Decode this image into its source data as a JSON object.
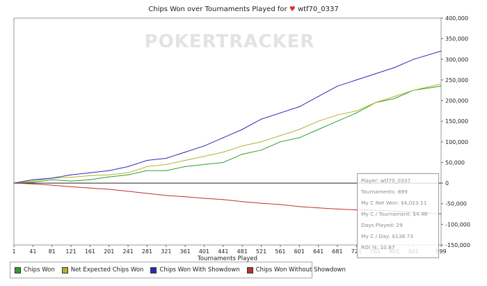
{
  "title": {
    "prefix": "Chips Won over Tournaments Played for",
    "player": "wtf70_0337",
    "suit_icon": "heart-icon"
  },
  "watermark": "POKERTRACKER",
  "legend": [
    {
      "name": "Chips Won",
      "color": "#2aa02a"
    },
    {
      "name": "Net Expected Chips Won",
      "color": "#b5b030"
    },
    {
      "name": "Chips Won With Showdown",
      "color": "#2a2ab8"
    },
    {
      "name": "Chips Won Without Showdown",
      "color": "#c03030"
    }
  ],
  "stats": [
    "Player: wtf70_0337",
    "Tournaments: 899",
    "My C Net Won: $4,023.11",
    "My C / Tournament: $4.48",
    "Days Played: 29",
    "My C / Day: $138.73",
    "ROI %: 10.87"
  ],
  "chart_data": {
    "type": "line",
    "title": "Chips Won over Tournaments Played for wtf70_0337",
    "xlabel": "Tournaments Played",
    "ylabel": "",
    "xlim": [
      1,
      899
    ],
    "ylim": [
      -150000,
      400000
    ],
    "x_ticks": [
      "1",
      "41",
      "81",
      "121",
      "161",
      "201",
      "241",
      "281",
      "321",
      "361",
      "401",
      "441",
      "481",
      "521",
      "561",
      "601",
      "641",
      "681",
      "721",
      "761",
      "801",
      "841",
      "899"
    ],
    "y_ticks": [
      "400,000",
      "350,000",
      "300,000",
      "250,000",
      "200,000",
      "150,000",
      "100,000",
      "50,000",
      "0",
      "-50,000",
      "-100,000",
      "-150,000"
    ],
    "grid": false,
    "legend_position": "bottom",
    "x": [
      1,
      41,
      81,
      121,
      161,
      201,
      241,
      281,
      321,
      361,
      401,
      441,
      481,
      521,
      561,
      601,
      641,
      681,
      721,
      761,
      801,
      841,
      899
    ],
    "series": [
      {
        "name": "Chips Won",
        "values": [
          0,
          2000,
          8000,
          5000,
          8000,
          15000,
          20000,
          30000,
          30000,
          40000,
          45000,
          50000,
          70000,
          80000,
          100000,
          110000,
          130000,
          150000,
          170000,
          195000,
          205000,
          225000,
          235000
        ]
      },
      {
        "name": "Net Expected Chips Won",
        "values": [
          0,
          5000,
          12000,
          14000,
          18000,
          20000,
          25000,
          40000,
          45000,
          55000,
          65000,
          75000,
          90000,
          100000,
          115000,
          130000,
          150000,
          165000,
          175000,
          195000,
          210000,
          225000,
          240000
        ]
      },
      {
        "name": "Chips Won With Showdown",
        "values": [
          0,
          8000,
          12000,
          20000,
          25000,
          30000,
          40000,
          55000,
          60000,
          75000,
          90000,
          110000,
          130000,
          155000,
          170000,
          185000,
          210000,
          235000,
          250000,
          265000,
          280000,
          300000,
          320000
        ]
      },
      {
        "name": "Chips Won Without Showdown",
        "values": [
          0,
          -2000,
          -5000,
          -9000,
          -12000,
          -15000,
          -20000,
          -25000,
          -30000,
          -33000,
          -37000,
          -40000,
          -45000,
          -49000,
          -52000,
          -57000,
          -60000,
          -63000,
          -65000,
          -66000,
          -68000,
          -70000,
          -75000
        ]
      }
    ]
  }
}
